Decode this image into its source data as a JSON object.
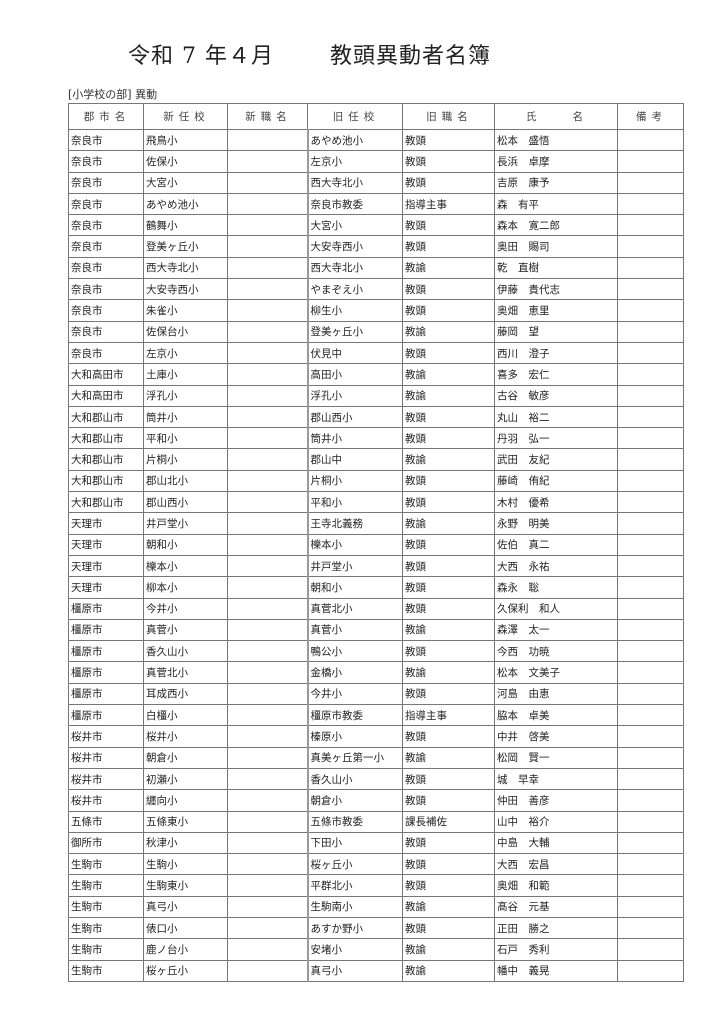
{
  "title": {
    "date": "令和 7 年４月",
    "name": "教頭異動者名簿"
  },
  "section": "[小学校の部] 異動",
  "headers": [
    "郡市名",
    "新任校",
    "新職名",
    "旧任校",
    "旧職名",
    "氏　　名",
    "備考"
  ],
  "rows": [
    [
      "奈良市",
      "飛鳥小",
      "",
      "あやめ池小",
      "教頭",
      "松本　盛悟",
      ""
    ],
    [
      "奈良市",
      "佐保小",
      "",
      "左京小",
      "教頭",
      "長浜　卓摩",
      ""
    ],
    [
      "奈良市",
      "大宮小",
      "",
      "西大寺北小",
      "教頭",
      "吉原　康予",
      ""
    ],
    [
      "奈良市",
      "あやめ池小",
      "",
      "奈良市教委",
      "指導主事",
      "森　有平",
      ""
    ],
    [
      "奈良市",
      "鶴舞小",
      "",
      "大宮小",
      "教頭",
      "森本　寛二郎",
      ""
    ],
    [
      "奈良市",
      "登美ヶ丘小",
      "",
      "大安寺西小",
      "教頭",
      "奥田　賜司",
      ""
    ],
    [
      "奈良市",
      "西大寺北小",
      "",
      "西大寺北小",
      "教諭",
      "乾　直樹",
      ""
    ],
    [
      "奈良市",
      "大安寺西小",
      "",
      "やまぞえ小",
      "教頭",
      "伊藤　貴代志",
      ""
    ],
    [
      "奈良市",
      "朱雀小",
      "",
      "柳生小",
      "教頭",
      "奥畑　恵里",
      ""
    ],
    [
      "奈良市",
      "佐保台小",
      "",
      "登美ヶ丘小",
      "教諭",
      "藤岡　望",
      ""
    ],
    [
      "奈良市",
      "左京小",
      "",
      "伏見中",
      "教頭",
      "西川　澄子",
      ""
    ],
    [
      "大和高田市",
      "土庫小",
      "",
      "高田小",
      "教諭",
      "喜多　宏仁",
      ""
    ],
    [
      "大和高田市",
      "浮孔小",
      "",
      "浮孔小",
      "教諭",
      "古谷　敏彦",
      ""
    ],
    [
      "大和郡山市",
      "筒井小",
      "",
      "郡山西小",
      "教頭",
      "丸山　裕二",
      ""
    ],
    [
      "大和郡山市",
      "平和小",
      "",
      "筒井小",
      "教頭",
      "丹羽　弘一",
      ""
    ],
    [
      "大和郡山市",
      "片桐小",
      "",
      "郡山中",
      "教諭",
      "武田　友紀",
      ""
    ],
    [
      "大和郡山市",
      "郡山北小",
      "",
      "片桐小",
      "教頭",
      "藤崎　侑紀",
      ""
    ],
    [
      "大和郡山市",
      "郡山西小",
      "",
      "平和小",
      "教頭",
      "木村　優希",
      ""
    ],
    [
      "天理市",
      "井戸堂小",
      "",
      "王寺北義務",
      "教諭",
      "永野　明美",
      ""
    ],
    [
      "天理市",
      "朝和小",
      "",
      "櫟本小",
      "教頭",
      "佐伯　真二",
      ""
    ],
    [
      "天理市",
      "櫟本小",
      "",
      "井戸堂小",
      "教頭",
      "大西　永祐",
      ""
    ],
    [
      "天理市",
      "柳本小",
      "",
      "朝和小",
      "教頭",
      "森永　聡",
      ""
    ],
    [
      "橿原市",
      "今井小",
      "",
      "真菅北小",
      "教頭",
      "久保利　和人",
      ""
    ],
    [
      "橿原市",
      "真菅小",
      "",
      "真菅小",
      "教諭",
      "森澤　太一",
      ""
    ],
    [
      "橿原市",
      "香久山小",
      "",
      "鴨公小",
      "教頭",
      "今西　功暁",
      ""
    ],
    [
      "橿原市",
      "真菅北小",
      "",
      "金橋小",
      "教諭",
      "松本　文美子",
      ""
    ],
    [
      "橿原市",
      "耳成西小",
      "",
      "今井小",
      "教頭",
      "河島　由恵",
      ""
    ],
    [
      "橿原市",
      "白橿小",
      "",
      "橿原市教委",
      "指導主事",
      "脇本　卓美",
      ""
    ],
    [
      "桜井市",
      "桜井小",
      "",
      "榛原小",
      "教頭",
      "中井　啓美",
      ""
    ],
    [
      "桜井市",
      "朝倉小",
      "",
      "真美ヶ丘第一小",
      "教諭",
      "松岡　賢一",
      ""
    ],
    [
      "桜井市",
      "初瀬小",
      "",
      "香久山小",
      "教頭",
      "城　早幸",
      ""
    ],
    [
      "桜井市",
      "纒向小",
      "",
      "朝倉小",
      "教頭",
      "仲田　善彦",
      ""
    ],
    [
      "五條市",
      "五條東小",
      "",
      "五條市教委",
      "課長補佐",
      "山中　裕介",
      ""
    ],
    [
      "御所市",
      "秋津小",
      "",
      "下田小",
      "教頭",
      "中島　大輔",
      ""
    ],
    [
      "生駒市",
      "生駒小",
      "",
      "桜ヶ丘小",
      "教頭",
      "大西　宏昌",
      ""
    ],
    [
      "生駒市",
      "生駒東小",
      "",
      "平群北小",
      "教頭",
      "奥畑　和範",
      ""
    ],
    [
      "生駒市",
      "真弓小",
      "",
      "生駒南小",
      "教諭",
      "髙谷　元基",
      ""
    ],
    [
      "生駒市",
      "俵口小",
      "",
      "あすか野小",
      "教頭",
      "正田　勝之",
      ""
    ],
    [
      "生駒市",
      "鹿ノ台小",
      "",
      "安堵小",
      "教諭",
      "石戸　秀利",
      ""
    ],
    [
      "生駒市",
      "桜ヶ丘小",
      "",
      "真弓小",
      "教諭",
      "幡中　義晃",
      ""
    ]
  ]
}
